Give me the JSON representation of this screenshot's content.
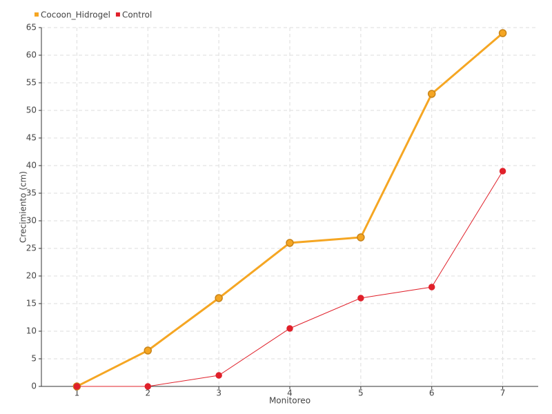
{
  "chart_data": {
    "type": "line",
    "x_label": "Monitoreo",
    "y_label": "Crecimiento (cm)",
    "categories": [
      "1",
      "2",
      "3",
      "4",
      "5",
      "6",
      "7"
    ],
    "series": [
      {
        "name": "Cocoon_Hidrogel",
        "color": "#f5a623",
        "values": [
          0,
          6.5,
          16,
          26,
          27,
          53,
          64
        ]
      },
      {
        "name": "Control",
        "color": "#e0202a",
        "values": [
          0,
          0,
          2,
          10.5,
          16,
          18,
          39
        ]
      }
    ],
    "ylim": [
      0,
      65
    ],
    "yticks": [
      0,
      5,
      10,
      15,
      20,
      25,
      30,
      35,
      40,
      45,
      50,
      55,
      60,
      65
    ],
    "grid": true,
    "legend": "top-left"
  }
}
